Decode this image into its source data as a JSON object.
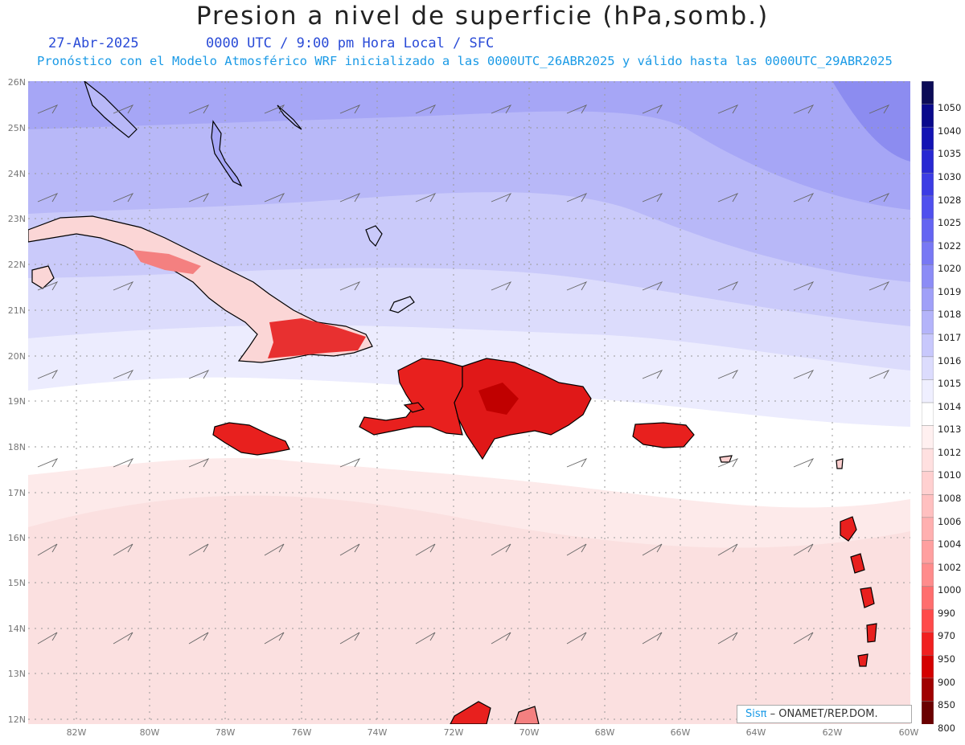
{
  "title": "Presion a nivel de superficie (hPa,somb.)",
  "date": "27-Abr-2025",
  "time_info": "0000 UTC / 9:00 pm Hora Local / SFC",
  "subtitle": "Pronóstico con el Modelo Atmosférico WRF inicializado a las 0000UTC_26ABR2025 y válido hasta las  0000UTC_29ABR2025",
  "credit": {
    "logo": "Sisπ",
    "text": "– ONAMET/REP.DOM."
  },
  "lat_labels": [
    "26N",
    "25N",
    "24N",
    "23N",
    "22N",
    "21N",
    "20N",
    "19N",
    "18N",
    "17N",
    "16N",
    "15N",
    "14N",
    "13N",
    "12N"
  ],
  "lon_labels": [
    "82W",
    "80W",
    "78W",
    "76W",
    "74W",
    "72W",
    "70W",
    "68W",
    "66W",
    "64W",
    "62W",
    "60W"
  ],
  "colorbar": {
    "levels": [
      "1050",
      "1040",
      "1035",
      "1030",
      "1028",
      "1025",
      "1022",
      "1020",
      "1019",
      "1018",
      "1017",
      "1016",
      "1015",
      "1014",
      "1013",
      "1012",
      "1010",
      "1008",
      "1006",
      "1004",
      "1002",
      "1000",
      "990",
      "970",
      "950",
      "900",
      "850",
      "800"
    ],
    "colors": [
      "#0c0c57",
      "#0a0a8c",
      "#1414b4",
      "#2828d2",
      "#3c3ce4",
      "#5050ee",
      "#6464f2",
      "#7878f4",
      "#8c8cf6",
      "#a0a0f8",
      "#b4b4fa",
      "#c8c8fc",
      "#dcdcfd",
      "#efefff",
      "#ffffff",
      "#fff0f0",
      "#ffe0e0",
      "#ffd0d0",
      "#ffc0c0",
      "#ffb0b0",
      "#ffa0a0",
      "#ff8c8c",
      "#ff6e6e",
      "#ff4a4a",
      "#f02020",
      "#d40000",
      "#a00000",
      "#6a0000"
    ]
  },
  "map_colors": {
    "p1020": "#8c8cf0",
    "p1018": "#a6a6f6",
    "p1017": "#b8b8f8",
    "p1016": "#cacafa",
    "p1015": "#dcdcfc",
    "p1014": "#ececfe",
    "p1013": "#ffffff",
    "p1012": "#fdeaea",
    "p1011": "#fbe0e0",
    "land_high": "#e8201e"
  }
}
